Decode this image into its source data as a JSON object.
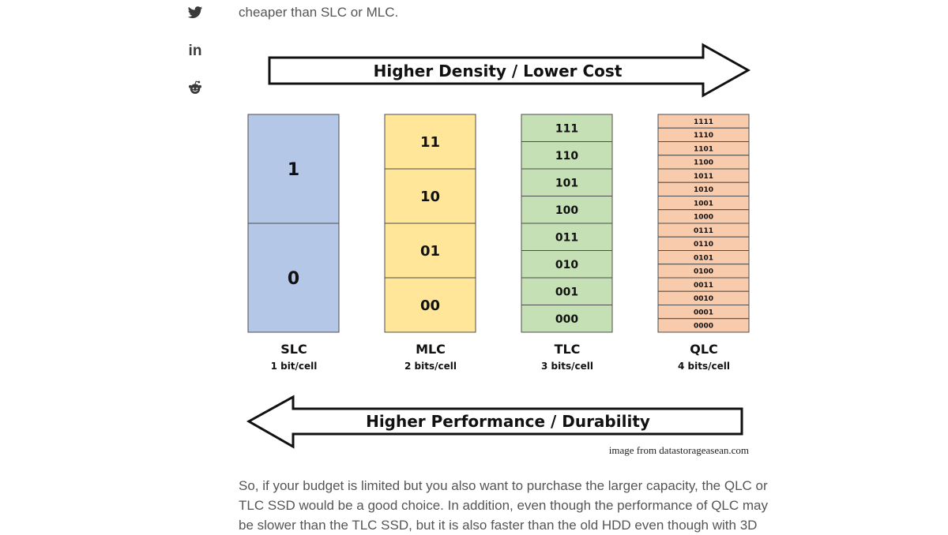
{
  "share": {
    "buttons": [
      {
        "name": "twitter",
        "icon": "twitter-icon"
      },
      {
        "name": "linkedin",
        "icon": "linkedin-icon",
        "glyph": "in"
      },
      {
        "name": "reddit",
        "icon": "reddit-icon"
      }
    ]
  },
  "article": {
    "intro_fragment": "cheaper than SLC or MLC.",
    "outro_paragraph": "So, if your budget is limited but you also want to purchase the larger capacity, the QLC or TLC SSD would be a good choice. In addition, even though the performance of QLC may be slower than the TLC SSD, but it is also faster than the old HDD even though with 3D"
  },
  "figure": {
    "top_arrow_label": "Higher Density / Lower Cost",
    "bottom_arrow_label": "Higher Performance / Durability",
    "credit": "image from datastorageasean.com",
    "cells": [
      {
        "name": "SLC",
        "bits_label": "1 bit/cell",
        "color": "#b4c7e7",
        "states": [
          "1",
          "0"
        ]
      },
      {
        "name": "MLC",
        "bits_label": "2 bits/cell",
        "color": "#ffe699",
        "states": [
          "11",
          "10",
          "01",
          "00"
        ]
      },
      {
        "name": "TLC",
        "bits_label": "3 bits/cell",
        "color": "#c5e0b4",
        "states": [
          "111",
          "110",
          "101",
          "100",
          "011",
          "010",
          "001",
          "000"
        ]
      },
      {
        "name": "QLC",
        "bits_label": "4 bits/cell",
        "color": "#f8cbad",
        "states": [
          "1111",
          "1110",
          "1101",
          "1100",
          "1011",
          "1010",
          "1001",
          "1000",
          "0111",
          "0110",
          "0101",
          "0100",
          "0011",
          "0010",
          "0001",
          "0000"
        ]
      }
    ]
  }
}
